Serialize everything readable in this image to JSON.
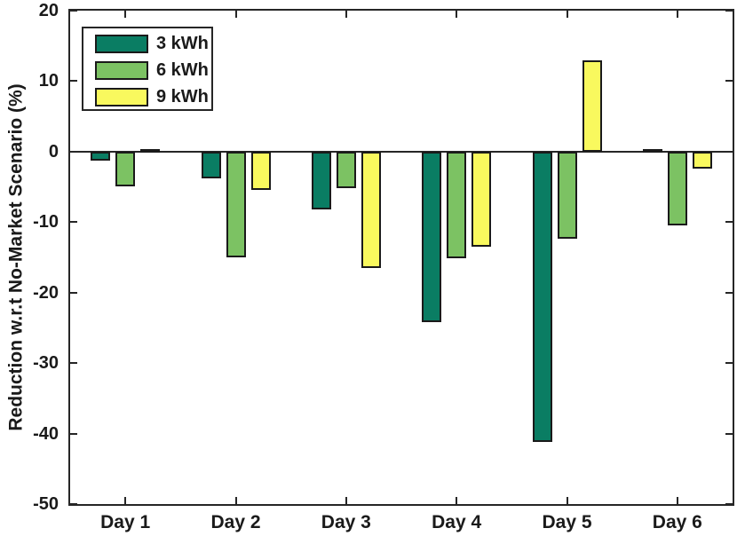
{
  "figure": {
    "title": "",
    "ylabel": "Reduction w.r.t No-Market Scenario (%)"
  },
  "chart_data": {
    "type": "bar",
    "categories": [
      "Day 1",
      "Day 2",
      "Day 3",
      "Day 4",
      "Day 5",
      "Day 6"
    ],
    "series": [
      {
        "name": "3 kWh",
        "color": "#0a7d63",
        "values": [
          -1.3,
          -3.8,
          -8.2,
          -24.2,
          -41.2,
          0.4
        ]
      },
      {
        "name": "6 kWh",
        "color": "#7cc263",
        "values": [
          -4.9,
          -15.0,
          -5.2,
          -15.1,
          -12.3,
          -10.5
        ]
      },
      {
        "name": "9 kWh",
        "color": "#f9f95e",
        "values": [
          0.4,
          -5.4,
          -16.5,
          -13.5,
          13.0,
          -2.4
        ]
      }
    ],
    "xlabel": "",
    "ylabel": "Reduction w.r.t No-Market Scenario (%)",
    "ylim": [
      -50,
      20
    ],
    "yticks": [
      20,
      10,
      0,
      -10,
      -20,
      -30,
      -40,
      -50
    ],
    "grid": false,
    "legend_position": "top-left",
    "axis_color": "#262626",
    "bar_border_color": "#1a1a1a",
    "background_color": "#ffffff"
  }
}
